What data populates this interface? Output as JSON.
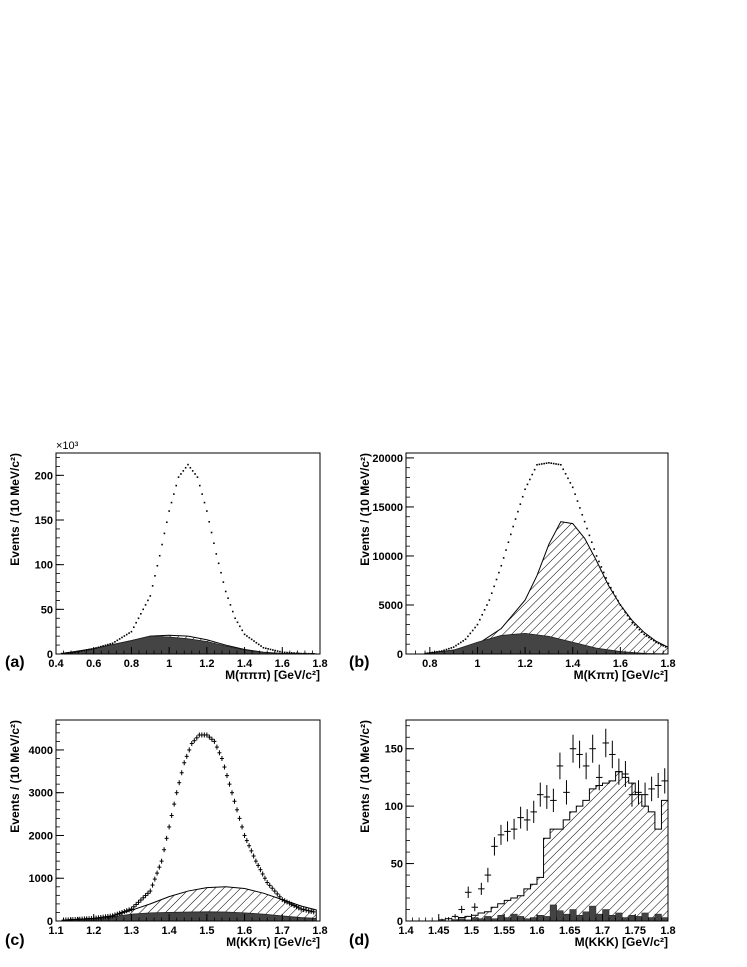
{
  "chart_data": [
    {
      "type": "area",
      "panel_label": "(a)",
      "xlabel": "M(πππ) [GeV/c²]",
      "ylabel": "Events / (10 MeV/c²)",
      "multiplier_label": "×10³",
      "xlim": [
        0.4,
        1.8
      ],
      "ylim": [
        0,
        225
      ],
      "x_ticks": [
        {
          "v": 0.4,
          "label": "0.4"
        },
        {
          "v": 0.6,
          "label": "0.6"
        },
        {
          "v": 0.8,
          "label": "0.8"
        },
        {
          "v": 1.0,
          "label": "1"
        },
        {
          "v": 1.2,
          "label": "1.2"
        },
        {
          "v": 1.4,
          "label": "1.4"
        },
        {
          "v": 1.6,
          "label": "1.6"
        },
        {
          "v": 1.8,
          "label": "1.8"
        }
      ],
      "y_ticks": [
        {
          "v": 0,
          "label": "0"
        },
        {
          "v": 50,
          "label": "50"
        },
        {
          "v": 100,
          "label": "100"
        },
        {
          "v": 150,
          "label": "150"
        },
        {
          "v": 200,
          "label": "200"
        }
      ],
      "data_curve": {
        "x": [
          0.43,
          0.5,
          0.6,
          0.7,
          0.8,
          0.9,
          0.95,
          1.0,
          1.05,
          1.1,
          1.15,
          1.2,
          1.25,
          1.3,
          1.35,
          1.4,
          1.5,
          1.6,
          1.7,
          1.78
        ],
        "y": [
          0.5,
          2,
          6,
          12,
          25,
          65,
          110,
          160,
          198,
          212,
          198,
          160,
          112,
          70,
          40,
          22,
          7,
          2,
          0.5,
          0.2
        ]
      },
      "hatched_curve": {
        "x": [
          0.43,
          0.6,
          0.8,
          0.9,
          1.0,
          1.1,
          1.2,
          1.3,
          1.4,
          1.5,
          1.6,
          1.78
        ],
        "y": [
          0.5,
          6,
          15,
          20,
          21,
          20,
          16,
          10,
          5,
          2,
          0.6,
          0.1
        ]
      },
      "dark_curve": {
        "x": [
          0.43,
          0.6,
          0.8,
          0.9,
          1.0,
          1.1,
          1.2,
          1.3,
          1.4,
          1.5,
          1.6,
          1.78
        ],
        "y": [
          0.5,
          6,
          15,
          20,
          19,
          17,
          14,
          9,
          4.5,
          1.8,
          0.5,
          0.1
        ]
      }
    },
    {
      "type": "area",
      "panel_label": "(b)",
      "xlabel": "M(Kππ) [GeV/c²]",
      "ylabel": "Events / (10 MeV/c²)",
      "xlim": [
        0.7,
        1.8
      ],
      "ylim": [
        0,
        20500
      ],
      "x_ticks": [
        {
          "v": 0.8,
          "label": "0.8"
        },
        {
          "v": 1.0,
          "label": "1"
        },
        {
          "v": 1.2,
          "label": "1.2"
        },
        {
          "v": 1.4,
          "label": "1.4"
        },
        {
          "v": 1.6,
          "label": "1.6"
        },
        {
          "v": 1.8,
          "label": "1.8"
        }
      ],
      "y_ticks": [
        {
          "v": 0,
          "label": "0"
        },
        {
          "v": 5000,
          "label": "5000"
        },
        {
          "v": 10000,
          "label": "10000"
        },
        {
          "v": 15000,
          "label": "15000"
        },
        {
          "v": 20000,
          "label": "20000"
        }
      ],
      "data_curve": {
        "x": [
          0.78,
          0.85,
          0.9,
          0.95,
          1.0,
          1.05,
          1.1,
          1.15,
          1.2,
          1.25,
          1.3,
          1.35,
          1.4,
          1.45,
          1.5,
          1.55,
          1.6,
          1.65,
          1.7,
          1.75,
          1.8
        ],
        "y": [
          50,
          300,
          700,
          1500,
          3000,
          5500,
          9000,
          13000,
          16800,
          19300,
          19500,
          19300,
          17000,
          13500,
          10000,
          7200,
          5000,
          3200,
          2000,
          1200,
          600
        ]
      },
      "hatched_curve": {
        "x": [
          0.78,
          0.9,
          1.0,
          1.1,
          1.2,
          1.25,
          1.3,
          1.35,
          1.4,
          1.45,
          1.5,
          1.55,
          1.6,
          1.65,
          1.7,
          1.75,
          1.8
        ],
        "y": [
          50,
          400,
          1000,
          2600,
          5500,
          8000,
          11200,
          13500,
          13300,
          11800,
          9500,
          7000,
          5000,
          3400,
          2200,
          1300,
          700
        ]
      },
      "dark_curve": {
        "x": [
          0.78,
          0.9,
          1.0,
          1.1,
          1.2,
          1.3,
          1.4,
          1.5,
          1.6,
          1.7,
          1.8
        ],
        "y": [
          50,
          400,
          1200,
          1900,
          2100,
          1800,
          1200,
          600,
          250,
          60,
          10
        ]
      }
    },
    {
      "type": "area",
      "panel_label": "(c)",
      "xlabel": "M(KKπ) [GeV/c²]",
      "ylabel": "Events / (10 MeV/c²)",
      "xlim": [
        1.1,
        1.8
      ],
      "ylim": [
        0,
        4700
      ],
      "x_ticks": [
        {
          "v": 1.1,
          "label": "1.1"
        },
        {
          "v": 1.2,
          "label": "1.2"
        },
        {
          "v": 1.3,
          "label": "1.3"
        },
        {
          "v": 1.4,
          "label": "1.4"
        },
        {
          "v": 1.5,
          "label": "1.5"
        },
        {
          "v": 1.6,
          "label": "1.6"
        },
        {
          "v": 1.7,
          "label": "1.7"
        },
        {
          "v": 1.8,
          "label": "1.8"
        }
      ],
      "y_ticks": [
        {
          "v": 0,
          "label": "0"
        },
        {
          "v": 1000,
          "label": "1000"
        },
        {
          "v": 2000,
          "label": "2000"
        },
        {
          "v": 3000,
          "label": "3000"
        },
        {
          "v": 4000,
          "label": "4000"
        }
      ],
      "data_curve": {
        "x": [
          1.12,
          1.2,
          1.25,
          1.3,
          1.35,
          1.38,
          1.4,
          1.42,
          1.44,
          1.46,
          1.48,
          1.5,
          1.52,
          1.54,
          1.56,
          1.58,
          1.6,
          1.63,
          1.66,
          1.7,
          1.75,
          1.79
        ],
        "y": [
          20,
          60,
          120,
          280,
          700,
          1400,
          2200,
          3000,
          3700,
          4150,
          4350,
          4350,
          4200,
          3800,
          3200,
          2600,
          2000,
          1400,
          900,
          500,
          280,
          200
        ]
      },
      "hatched_curve": {
        "x": [
          1.12,
          1.2,
          1.25,
          1.3,
          1.35,
          1.4,
          1.45,
          1.5,
          1.55,
          1.6,
          1.65,
          1.7,
          1.75,
          1.79
        ],
        "y": [
          20,
          60,
          120,
          250,
          400,
          570,
          700,
          780,
          800,
          760,
          650,
          500,
          350,
          260
        ]
      },
      "dark_curve": {
        "x": [
          1.12,
          1.2,
          1.25,
          1.3,
          1.35,
          1.4,
          1.45,
          1.5,
          1.55,
          1.6,
          1.65,
          1.7,
          1.75,
          1.79
        ],
        "y": [
          20,
          60,
          100,
          160,
          190,
          200,
          210,
          215,
          210,
          190,
          160,
          120,
          80,
          60
        ]
      }
    },
    {
      "type": "bar",
      "panel_label": "(d)",
      "xlabel": "M(KKK) [GeV/c²]",
      "ylabel": "Events / (10 MeV/c²)",
      "xlim": [
        1.4,
        1.8
      ],
      "ylim": [
        0,
        175
      ],
      "x_ticks": [
        {
          "v": 1.4,
          "label": "1.4"
        },
        {
          "v": 1.45,
          "label": "1.45"
        },
        {
          "v": 1.5,
          "label": "1.5"
        },
        {
          "v": 1.55,
          "label": "1.55"
        },
        {
          "v": 1.6,
          "label": "1.6"
        },
        {
          "v": 1.65,
          "label": "1.65"
        },
        {
          "v": 1.7,
          "label": "1.7"
        },
        {
          "v": 1.75,
          "label": "1.75"
        },
        {
          "v": 1.8,
          "label": "1.8"
        }
      ],
      "y_ticks": [
        {
          "v": 0,
          "label": "0"
        },
        {
          "v": 50,
          "label": "50"
        },
        {
          "v": 100,
          "label": "100"
        },
        {
          "v": 150,
          "label": "150"
        }
      ],
      "data_points": {
        "x": [
          1.405,
          1.415,
          1.425,
          1.435,
          1.445,
          1.455,
          1.465,
          1.475,
          1.485,
          1.495,
          1.505,
          1.515,
          1.525,
          1.535,
          1.545,
          1.555,
          1.565,
          1.575,
          1.585,
          1.595,
          1.605,
          1.615,
          1.625,
          1.635,
          1.645,
          1.655,
          1.665,
          1.675,
          1.685,
          1.695,
          1.705,
          1.715,
          1.725,
          1.735,
          1.745,
          1.755,
          1.765,
          1.775,
          1.785,
          1.795
        ],
        "y": [
          0,
          0,
          0,
          0,
          0,
          1,
          2,
          4,
          10,
          25,
          12,
          28,
          40,
          65,
          75,
          78,
          80,
          90,
          88,
          95,
          110,
          108,
          105,
          135,
          112,
          150,
          145,
          135,
          150,
          125,
          155,
          145,
          130,
          128,
          110,
          112,
          110,
          115,
          118,
          122
        ],
        "err": [
          0,
          0,
          0,
          0,
          0,
          1,
          1.4,
          2,
          3.2,
          5,
          3.5,
          5.3,
          6.3,
          8,
          8.7,
          8.8,
          9,
          9.5,
          9.4,
          9.7,
          10.5,
          10.4,
          10.2,
          11.6,
          10.6,
          12.2,
          12,
          11.6,
          12.2,
          11.2,
          12.4,
          12,
          11.4,
          11.3,
          10.5,
          10.6,
          10.5,
          10.7,
          10.9,
          11
        ]
      },
      "bin_edges": [
        1.47,
        1.48,
        1.49,
        1.5,
        1.51,
        1.52,
        1.53,
        1.54,
        1.55,
        1.56,
        1.57,
        1.58,
        1.59,
        1.6,
        1.61,
        1.62,
        1.63,
        1.64,
        1.65,
        1.66,
        1.67,
        1.68,
        1.69,
        1.7,
        1.71,
        1.72,
        1.73,
        1.74,
        1.75,
        1.76,
        1.77,
        1.78,
        1.79,
        1.8
      ],
      "hatched_values": [
        1,
        3,
        4,
        5,
        7,
        8,
        12,
        15,
        18,
        20,
        22,
        28,
        32,
        38,
        72,
        80,
        80,
        88,
        95,
        100,
        105,
        115,
        118,
        120,
        122,
        130,
        125,
        120,
        110,
        100,
        95,
        80,
        105
      ],
      "dark_values": [
        1,
        2,
        1,
        3,
        2,
        4,
        2,
        5,
        3,
        6,
        4,
        2,
        3,
        5,
        4,
        14,
        9,
        6,
        10,
        5,
        8,
        13,
        6,
        10,
        5,
        7,
        3,
        5,
        4,
        7,
        3,
        6,
        3
      ]
    }
  ]
}
